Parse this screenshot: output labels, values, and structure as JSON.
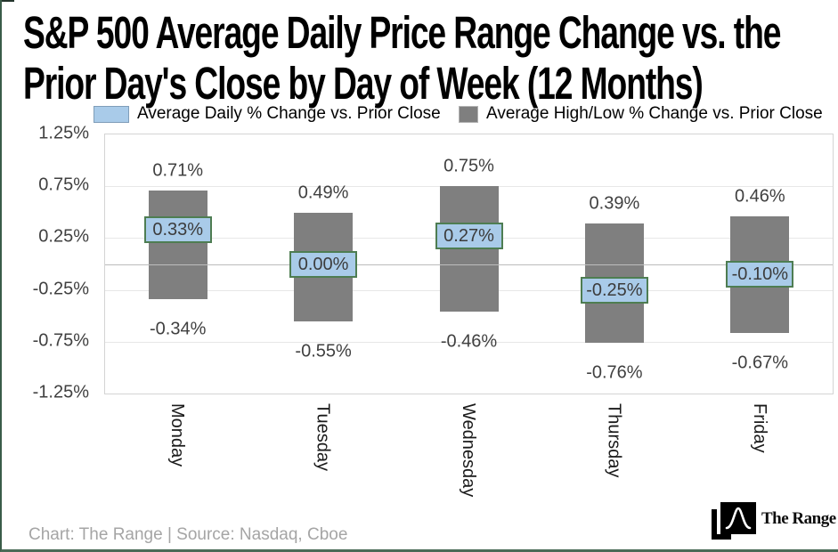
{
  "title_lines": [
    "S&P 500 Average Daily Price Range Change vs. the",
    "Prior Day's Close by Day of Week (12 Months)"
  ],
  "legend": {
    "items": [
      {
        "label": "Average Daily % Change vs. Prior Close",
        "color": "#a9cbe9",
        "border": "#7f9db9"
      },
      {
        "label": "Average High/Low % Change vs. Prior Close",
        "color": "#7f7f7f",
        "border": "#b3b3b3"
      }
    ]
  },
  "footer": {
    "credit": "Chart: The Range | Source: Nasdaq, Cboe",
    "logo_text": "The Range"
  },
  "colors": {
    "range_bar": "#7f7f7f",
    "avg_box_fill": "#a9cbe9",
    "avg_box_border": "#4e7d52",
    "frame_green": "#3a5c49"
  },
  "chart_data": {
    "type": "bar",
    "title": "S&P 500 Average Daily Price Range Change vs. the Prior Day's Close by Day of Week (12 Months)",
    "categories": [
      "Monday",
      "Tuesday",
      "Wednesday",
      "Thursday",
      "Friday"
    ],
    "series": [
      {
        "name": "Average Daily % Change vs. Prior Close",
        "type": "box",
        "values": [
          0.33,
          0.0,
          0.27,
          -0.25,
          -0.1
        ],
        "labels": [
          "0.33%",
          "0.00%",
          "0.27%",
          "-0.25%",
          "-0.10%"
        ],
        "fill": "#a9cbe9",
        "border": "#4e7d52"
      },
      {
        "name": "Average High/Low % Change vs. Prior Close",
        "type": "range-bar",
        "high": [
          0.71,
          0.49,
          0.75,
          0.39,
          0.46
        ],
        "low": [
          -0.34,
          -0.55,
          -0.46,
          -0.76,
          -0.67
        ],
        "high_labels": [
          "0.71%",
          "0.49%",
          "0.75%",
          "0.39%",
          "0.46%"
        ],
        "low_labels": [
          "-0.34%",
          "-0.55%",
          "-0.46%",
          "-0.76%",
          "-0.67%"
        ],
        "fill": "#7f7f7f"
      }
    ],
    "ylim": [
      -1.25,
      1.25
    ],
    "yticks": [
      {
        "value": 1.25,
        "label": "1.25%"
      },
      {
        "value": 0.75,
        "label": "0.75%"
      },
      {
        "value": 0.25,
        "label": "0.25%"
      },
      {
        "value": -0.25,
        "label": "-0.25%"
      },
      {
        "value": -0.75,
        "label": "-0.75%"
      },
      {
        "value": -1.25,
        "label": "-1.25%"
      }
    ],
    "grid": true,
    "legend_position": "top",
    "xlabel": "",
    "ylabel": ""
  }
}
